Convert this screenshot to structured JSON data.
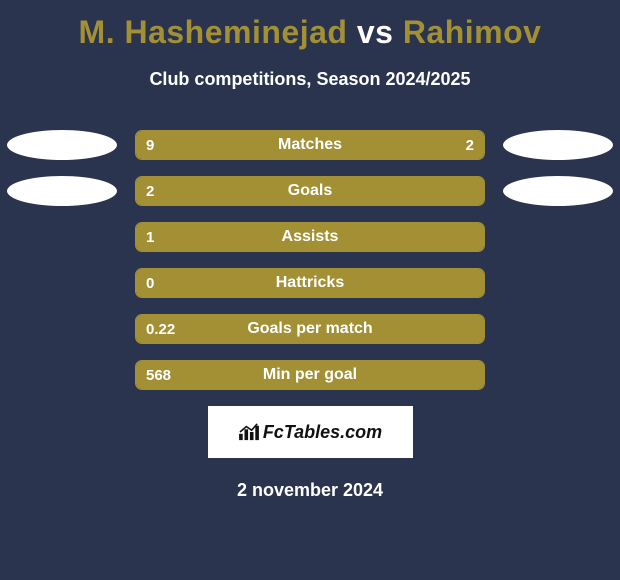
{
  "title": {
    "player1": "M. Hasheminejad",
    "vs": "vs",
    "player2": "Rahimov",
    "player_color": "#a39035",
    "vs_color": "#ffffff",
    "fontsize": 32
  },
  "subtitle": {
    "text": "Club competitions, Season 2024/2025",
    "color": "#ffffff",
    "fontsize": 18
  },
  "bars": {
    "track_width": 350,
    "track_height": 30,
    "border_radius": 7,
    "border_color": "#a39035",
    "fill_color": "#a39035",
    "track_bg": "#2a344e",
    "text_color": "#ffffff",
    "label_fontsize": 16,
    "value_fontsize": 15,
    "rows": [
      {
        "label": "Matches",
        "left": "9",
        "right": "2",
        "left_pct": 76,
        "right_pct": 24,
        "show_right": true,
        "ellipses": true,
        "ellipse_left_color": "#ffffff",
        "ellipse_right_color": "#ffffff"
      },
      {
        "label": "Goals",
        "left": "2",
        "right": "",
        "left_pct": 100,
        "right_pct": 0,
        "show_right": false,
        "ellipses": true,
        "ellipse_left_color": "#ffffff",
        "ellipse_right_color": "#ffffff"
      },
      {
        "label": "Assists",
        "left": "1",
        "right": "",
        "left_pct": 100,
        "right_pct": 0,
        "show_right": false,
        "ellipses": false
      },
      {
        "label": "Hattricks",
        "left": "0",
        "right": "",
        "left_pct": 100,
        "right_pct": 0,
        "show_right": false,
        "ellipses": false
      },
      {
        "label": "Goals per match",
        "left": "0.22",
        "right": "",
        "left_pct": 100,
        "right_pct": 0,
        "show_right": false,
        "ellipses": false
      },
      {
        "label": "Min per goal",
        "left": "568",
        "right": "",
        "left_pct": 100,
        "right_pct": 0,
        "show_right": false,
        "ellipses": false
      }
    ]
  },
  "ellipse": {
    "width": 110,
    "height": 30
  },
  "brand": {
    "text": "FcTables.com",
    "box_bg": "#ffffff",
    "text_color": "#111111",
    "fontsize": 18
  },
  "date": {
    "text": "2 november 2024",
    "color": "#ffffff",
    "fontsize": 18
  },
  "background_color": "#2a344e"
}
